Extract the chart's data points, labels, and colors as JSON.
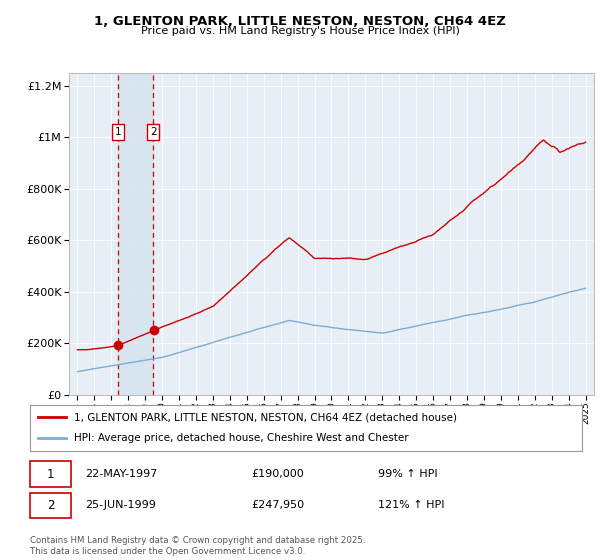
{
  "title1": "1, GLENTON PARK, LITTLE NESTON, NESTON, CH64 4EZ",
  "title2": "Price paid vs. HM Land Registry's House Price Index (HPI)",
  "legend_line1": "1, GLENTON PARK, LITTLE NESTON, NESTON, CH64 4EZ (detached house)",
  "legend_line2": "HPI: Average price, detached house, Cheshire West and Chester",
  "footer": "Contains HM Land Registry data © Crown copyright and database right 2025.\nThis data is licensed under the Open Government Licence v3.0.",
  "sale1_date": "22-MAY-1997",
  "sale1_price": "£190,000",
  "sale1_hpi": "99% ↑ HPI",
  "sale1_year": 1997.38,
  "sale1_value": 190000,
  "sale2_date": "25-JUN-1999",
  "sale2_price": "£247,950",
  "sale2_hpi": "121% ↑ HPI",
  "sale2_year": 1999.48,
  "sale2_value": 247950,
  "red_color": "#cc0000",
  "blue_color": "#7aadd4",
  "bg_plot": "#e8eef5",
  "bg_sale_span": "#d5e4f0",
  "ylim_min": 0,
  "ylim_max": 1250000,
  "xlim_min": 1994.5,
  "xlim_max": 2025.5
}
